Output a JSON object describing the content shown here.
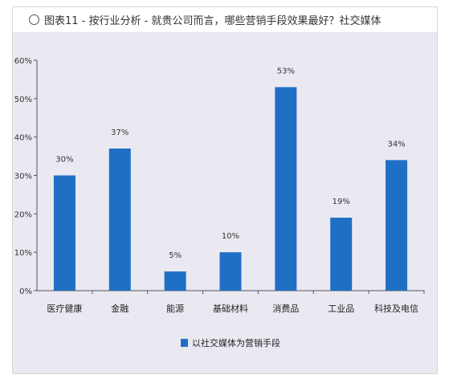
{
  "title": "图表11 - 按行业分析 - 就贵公司而言，哪些营销手段效果最好？社交媒体",
  "chart_data": {
    "type": "bar",
    "categories": [
      "医疗健康",
      "金融",
      "能源",
      "基础材料",
      "消费品",
      "工业品",
      "科技及电信"
    ],
    "series": [
      {
        "name": "以社交媒体为营销手段",
        "values": [
          30,
          37,
          5,
          10,
          53,
          19,
          34
        ]
      }
    ],
    "data_labels": [
      "30%",
      "37%",
      "5%",
      "10%",
      "53%",
      "19%",
      "34%"
    ],
    "y_ticks": [
      "0%",
      "10%",
      "20%",
      "30%",
      "40%",
      "50%",
      "60%"
    ],
    "ylim": [
      0,
      60
    ],
    "grid": false,
    "legend_position": "bottom-center",
    "bar_color": "#1f6fc5"
  }
}
